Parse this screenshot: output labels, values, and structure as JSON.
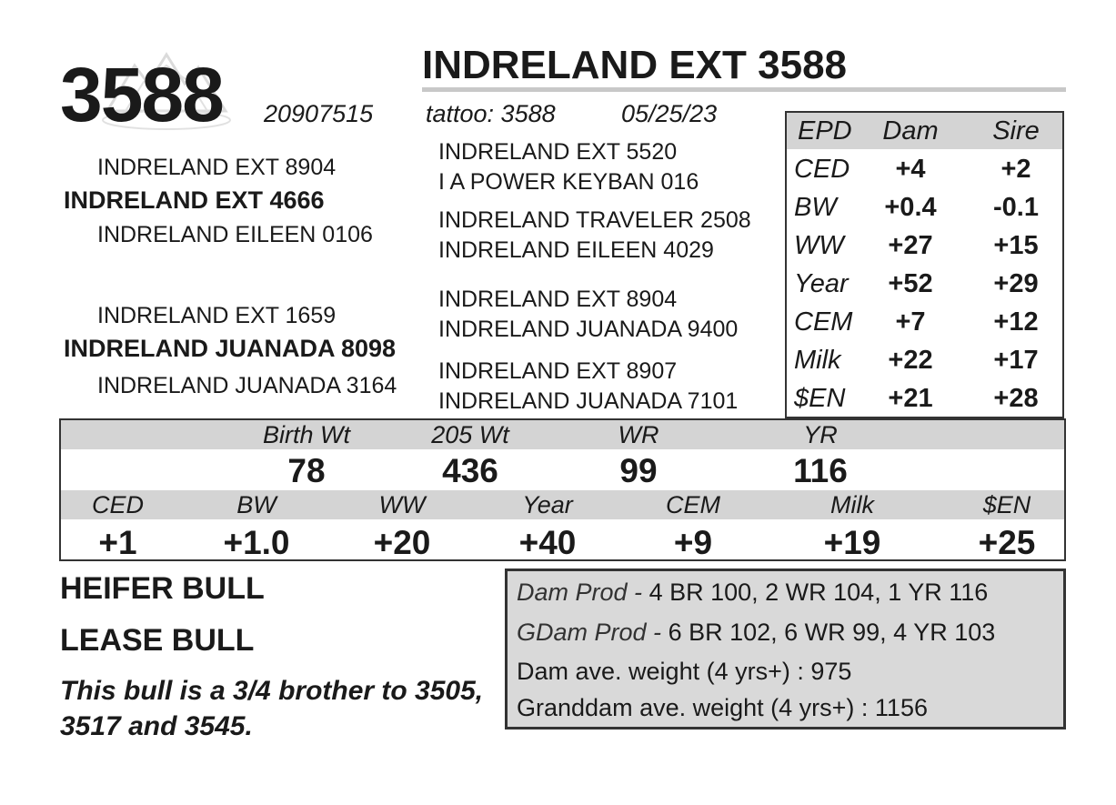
{
  "lot_number": "3588",
  "name": "INDRELAND EXT 3588",
  "registration": "20907515",
  "tattoo": "tattoo: 3588",
  "birth_date": "05/25/23",
  "pedigree": {
    "sire_sire": "INDRELAND EXT 8904",
    "sire": "INDRELAND EXT 4666",
    "sire_dam": "INDRELAND EILEEN 0106",
    "dam_sire": "INDRELAND EXT 1659",
    "dam": "INDRELAND JUANADA 8098",
    "dam_dam": "INDRELAND JUANADA 3164",
    "ss_sire": "INDRELAND EXT 5520",
    "ss_dam": "I A POWER KEYBAN 016",
    "sd_sire": "INDRELAND TRAVELER 2508",
    "sd_dam": "INDRELAND EILEEN 4029",
    "ds_sire": "INDRELAND EXT 8904",
    "ds_dam": "INDRELAND JUANADA 9400",
    "dd_sire": "INDRELAND EXT 8907",
    "dd_dam": "INDRELAND JUANADA 7101"
  },
  "parent_epd": {
    "headers": [
      "EPD",
      "Dam",
      "Sire"
    ],
    "rows": [
      {
        "label": "CED",
        "dam": "+4",
        "sire": "+2"
      },
      {
        "label": "BW",
        "dam": "+0.4",
        "sire": "-0.1"
      },
      {
        "label": "WW",
        "dam": "+27",
        "sire": "+15"
      },
      {
        "label": "Year",
        "dam": "+52",
        "sire": "+29"
      },
      {
        "label": "CEM",
        "dam": "+7",
        "sire": "+12"
      },
      {
        "label": "Milk",
        "dam": "+22",
        "sire": "+17"
      },
      {
        "label": "$EN",
        "dam": "+21",
        "sire": "+28"
      }
    ]
  },
  "performance": {
    "labels": [
      "Birth Wt",
      "205 Wt",
      "WR",
      "YR"
    ],
    "values": [
      "78",
      "436",
      "99",
      "116"
    ]
  },
  "epd": {
    "labels": [
      "CED",
      "BW",
      "WW",
      "Year",
      "CEM",
      "Milk",
      "$EN"
    ],
    "values": [
      "+1",
      "+1.0",
      "+20",
      "+40",
      "+9",
      "+19",
      "+25"
    ]
  },
  "notes": {
    "line1": "HEIFER BULL",
    "line2": "LEASE BULL",
    "description": "This bull is a 3/4 brother to 3505, 3517 and 3545."
  },
  "production": {
    "dam_prod_label": "Dam Prod -",
    "dam_prod_value": "4 BR 100, 2 WR 104, 1 YR 116",
    "gdam_prod_label": "GDam Prod -",
    "gdam_prod_value": "6 BR 102, 6 WR 99, 4 YR 103",
    "dam_weight": "Dam ave. weight (4 yrs+) : 975",
    "gdam_weight": "Granddam ave. weight (4 yrs+) : 1156"
  }
}
